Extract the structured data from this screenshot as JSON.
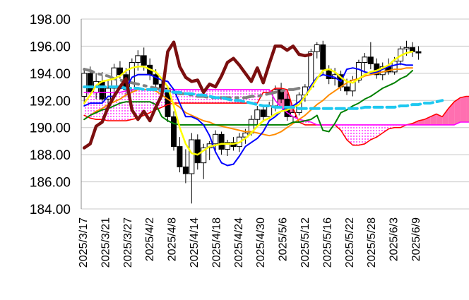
{
  "chart_data": {
    "type": "line",
    "title": "",
    "xlabel": "",
    "ylabel": "",
    "ylim": [
      184,
      198
    ],
    "y_ticks": [
      "198.00",
      "196.00",
      "194.00",
      "192.00",
      "190.00",
      "188.00",
      "186.00",
      "184.00"
    ],
    "x_ticks": [
      "2025/3/17",
      "2025/3/21",
      "2025/3/27",
      "2025/4/2",
      "2025/4/8",
      "2025/4/14",
      "2025/4/18",
      "2025/4/24",
      "2025/4/30",
      "2025/5/6",
      "2025/5/12",
      "2025/5/16",
      "2025/5/22",
      "2025/5/28",
      "2025/6/3",
      "2025/6/9"
    ],
    "grid": "horizontal",
    "colors": {
      "lagging": "#7b0f0f",
      "tenkan": "#0000ff",
      "kijun": "#008000",
      "ma_short": "#ffff00",
      "ma_mid": "#ff8c00",
      "long_dashed": "#808080",
      "cyan_dashed": "#1ec8f0",
      "span_a": "#ff00ff",
      "span_b": "#ff0000",
      "cloud_bull": "#ee82ee",
      "cloud_bear": "#ff6fb0"
    },
    "candles": [
      [
        192.3,
        194.4,
        191.7,
        194.0
      ],
      [
        194.0,
        194.5,
        192.3,
        192.6
      ],
      [
        192.6,
        194.0,
        192.1,
        193.4
      ],
      [
        193.4,
        194.1,
        191.9,
        192.1
      ],
      [
        192.1,
        193.5,
        191.6,
        192.9
      ],
      [
        192.9,
        194.7,
        192.5,
        194.4
      ],
      [
        194.4,
        194.9,
        193.6,
        193.9
      ],
      [
        193.9,
        194.4,
        192.3,
        192.8
      ],
      [
        192.8,
        195.1,
        192.6,
        194.8
      ],
      [
        194.8,
        195.7,
        194.2,
        195.3
      ],
      [
        195.3,
        195.9,
        194.2,
        194.6
      ],
      [
        194.6,
        195.1,
        193.5,
        193.9
      ],
      [
        193.9,
        194.3,
        192.8,
        193.2
      ],
      [
        193.2,
        193.6,
        192.4,
        192.9
      ],
      [
        192.9,
        193.1,
        190.4,
        190.8
      ],
      [
        190.8,
        191.2,
        188.3,
        188.6
      ],
      [
        188.6,
        189.3,
        186.7,
        187.1
      ],
      [
        187.1,
        188.4,
        185.9,
        186.6
      ],
      [
        186.6,
        189.6,
        184.4,
        189.1
      ],
      [
        189.1,
        189.5,
        186.9,
        187.4
      ],
      [
        187.4,
        188.8,
        186.2,
        188.5
      ],
      [
        188.5,
        189.0,
        187.6,
        188.8
      ],
      [
        188.8,
        189.8,
        188.3,
        189.5
      ],
      [
        189.5,
        189.7,
        188.0,
        188.4
      ],
      [
        188.4,
        189.1,
        187.9,
        188.9
      ],
      [
        188.9,
        189.3,
        188.3,
        188.6
      ],
      [
        188.6,
        189.6,
        188.2,
        189.3
      ],
      [
        189.3,
        189.9,
        188.8,
        189.6
      ],
      [
        189.6,
        190.9,
        189.4,
        190.6
      ],
      [
        190.6,
        191.6,
        190.1,
        191.3
      ],
      [
        191.3,
        191.7,
        190.4,
        190.8
      ],
      [
        190.8,
        191.9,
        190.6,
        191.6
      ],
      [
        191.6,
        193.1,
        191.2,
        192.8
      ],
      [
        192.8,
        193.3,
        191.8,
        192.1
      ],
      [
        192.1,
        192.5,
        190.5,
        190.8
      ],
      [
        190.8,
        191.4,
        190.3,
        191.1
      ],
      [
        191.1,
        192.6,
        190.9,
        192.4
      ],
      [
        192.4,
        193.2,
        191.9,
        193.0
      ],
      [
        193.0,
        195.8,
        192.8,
        195.6
      ],
      [
        195.6,
        196.3,
        195.1,
        196.1
      ],
      [
        196.1,
        196.4,
        193.9,
        194.3
      ],
      [
        194.3,
        194.6,
        193.2,
        193.6
      ],
      [
        193.6,
        194.4,
        193.1,
        193.9
      ],
      [
        193.9,
        194.2,
        192.7,
        193.0
      ],
      [
        193.0,
        193.6,
        192.4,
        192.7
      ],
      [
        192.7,
        193.8,
        192.3,
        193.5
      ],
      [
        193.5,
        195.0,
        193.3,
        194.8
      ],
      [
        194.8,
        195.5,
        194.1,
        195.2
      ],
      [
        195.2,
        196.3,
        194.3,
        194.7
      ],
      [
        194.7,
        195.1,
        193.6,
        193.9
      ],
      [
        193.9,
        194.8,
        193.5,
        194.5
      ],
      [
        194.5,
        195.1,
        193.9,
        194.1
      ],
      [
        194.1,
        195.2,
        193.9,
        194.9
      ],
      [
        194.9,
        196.0,
        194.6,
        195.8
      ],
      [
        195.8,
        196.4,
        195.3,
        195.9
      ],
      [
        195.9,
        196.3,
        195.2,
        195.6
      ],
      [
        195.6,
        196.0,
        195.0,
        195.5
      ]
    ],
    "series": [
      {
        "key": "lagging",
        "values": [
          188.5,
          188.8,
          190.1,
          190.4,
          191.5,
          192.3,
          193.0,
          193.6,
          191.3,
          190.6,
          191.2,
          190.5,
          191.5,
          192.4,
          195.6,
          196.3,
          194.5,
          193.7,
          193.4,
          193.5,
          192.6,
          193.2,
          193.0,
          193.8,
          194.8,
          195.1,
          194.6,
          194.0,
          193.4,
          194.4,
          193.3,
          194.7,
          196.0,
          196.0,
          195.7,
          196.0,
          195.4,
          195.3,
          195.4
        ]
      },
      {
        "key": "tenkan",
        "values": [
          191.6,
          191.8,
          191.8,
          191.8,
          192.3,
          192.3,
          192.9,
          192.9,
          193.7,
          193.9,
          193.9,
          193.9,
          193.7,
          193.5,
          193.4,
          192.8,
          191.8,
          190.8,
          190.8,
          190.6,
          190.2,
          189.4,
          188.2,
          187.4,
          187.2,
          187.3,
          187.9,
          188.6,
          188.9,
          189.2,
          189.7,
          190.5,
          190.8,
          191.2,
          191.5,
          191.6,
          191.9,
          192.3,
          193.1,
          193.7,
          193.9,
          193.8,
          193.7,
          193.4,
          194.3,
          194.4,
          194.3,
          194.1,
          194.0,
          194.1,
          194.3,
          194.5,
          194.6,
          194.7,
          194.6,
          194.6
        ]
      },
      {
        "key": "kijun",
        "values": [
          190.6,
          190.9,
          191.1,
          191.3,
          191.4,
          191.6,
          191.8,
          191.9,
          191.9,
          191.9,
          191.9,
          191.9,
          191.7,
          190.8,
          190.5,
          190.3,
          190.2,
          190.2,
          190.2,
          190.2,
          190.2,
          190.2,
          190.2,
          190.2,
          190.2,
          190.2,
          190.2,
          190.2,
          190.2,
          190.2,
          190.2,
          190.2,
          190.2,
          190.2,
          190.2,
          190.4,
          190.4,
          190.5,
          190.6,
          190.9,
          189.8,
          189.7,
          190.3,
          191.1,
          191.3,
          191.6,
          191.8,
          192.1,
          192.3,
          192.6,
          192.9,
          193.1,
          193.3,
          193.6,
          193.8,
          194.2
        ]
      },
      {
        "key": "ma_short",
        "values": [
          191.8,
          192.4,
          193.1,
          193.4,
          193.5,
          193.6,
          193.8,
          194.2,
          194.4,
          194.5,
          194.5,
          194.3,
          194.1,
          193.6,
          193.0,
          191.6,
          190.0,
          188.8,
          188.1,
          188.0,
          188.3,
          188.6,
          188.7,
          188.8,
          188.8,
          188.8,
          188.9,
          189.2,
          189.6,
          190.1,
          190.5,
          190.7,
          191.0,
          191.2,
          191.3,
          191.5,
          191.7,
          192.3,
          192.9,
          193.6,
          194.2,
          194.3,
          194.1,
          193.7,
          193.4,
          193.3,
          193.6,
          193.9,
          194.1,
          194.2,
          194.4,
          194.6,
          195.0,
          195.3,
          195.5,
          195.6
        ]
      },
      {
        "key": "ma_mid",
        "values": [
          190.6,
          190.9,
          191.2,
          191.4,
          191.7,
          191.9,
          192.1,
          192.4,
          192.6,
          192.8,
          192.8,
          192.8,
          192.7,
          192.4,
          192.1,
          191.8,
          191.5,
          191.1,
          190.9,
          190.7,
          190.5,
          190.4,
          190.2,
          190.1,
          190.0,
          189.9,
          189.8,
          189.7,
          189.7,
          189.6,
          189.5,
          189.4,
          189.5,
          189.7,
          190.0,
          190.3,
          190.6,
          190.9,
          191.3,
          191.7,
          192.0,
          192.4,
          192.7,
          193.0,
          193.3,
          193.5,
          193.6,
          193.8,
          193.9,
          194.0,
          194.1,
          194.2,
          194.3,
          194.3,
          194.4,
          194.4
        ]
      },
      {
        "key": "long_dashed",
        "values": [
          194.3,
          194.2,
          194.0,
          193.9,
          193.8,
          193.6,
          193.5,
          193.4,
          193.3,
          193.2,
          193.1,
          193.0,
          192.9,
          192.8,
          192.7,
          192.6,
          192.5,
          192.5,
          192.4,
          192.3,
          192.3,
          192.2,
          192.2,
          192.2,
          192.2,
          192.2,
          192.2,
          192.2,
          192.3,
          192.3,
          192.4,
          192.5,
          192.6,
          192.7,
          192.8,
          192.8,
          192.9
        ]
      },
      {
        "key": "cyan_dashed",
        "values": [
          193.0,
          193.0,
          193.0,
          193.0,
          193.0,
          193.0,
          193.0,
          192.9,
          192.9,
          192.9,
          192.8,
          192.8,
          192.8,
          192.7,
          192.7,
          192.6,
          192.6,
          192.5,
          192.5,
          192.4,
          192.4,
          192.3,
          192.2,
          192.2,
          192.1,
          192.0,
          192.0,
          191.9,
          191.8,
          191.7,
          191.6,
          191.6,
          191.5,
          191.5,
          191.5,
          191.5,
          191.4,
          191.4,
          191.4,
          191.4,
          191.4,
          191.4,
          191.4,
          191.4,
          191.4,
          191.4,
          191.4,
          191.5,
          191.5,
          191.5,
          191.5,
          191.5,
          191.5,
          191.6,
          191.6,
          191.7,
          191.7,
          191.8,
          191.8,
          191.9,
          192.0
        ]
      },
      {
        "key": "span_a",
        "values": [
          192.6,
          192.6,
          192.6,
          192.6,
          192.6,
          192.6,
          192.6,
          192.7,
          192.8,
          192.8,
          192.8,
          192.8,
          192.8,
          192.8,
          192.8,
          192.8,
          192.8,
          192.8,
          192.8,
          192.8,
          192.8,
          192.8,
          192.8,
          192.8,
          192.8,
          192.8,
          192.8,
          192.8,
          192.8,
          192.8,
          192.8,
          192.8,
          192.0,
          191.5,
          191.1,
          190.8,
          190.6,
          190.5,
          190.4,
          190.2,
          190.2,
          190.2,
          190.2,
          190.2,
          190.2,
          190.2,
          190.2,
          190.2,
          190.2,
          190.2,
          190.2,
          190.2,
          190.2,
          190.2,
          190.2,
          190.2,
          190.2,
          190.2,
          190.2,
          190.2,
          190.2,
          190.2,
          190.2,
          190.4,
          190.4,
          190.4
        ]
      },
      {
        "key": "span_b",
        "values": [
          190.9,
          190.7,
          190.6,
          190.6,
          190.5,
          190.5,
          190.5,
          190.5,
          190.6,
          190.7,
          190.9,
          191.1,
          191.3,
          191.5,
          191.7,
          191.8,
          191.8,
          191.8,
          191.8,
          191.8,
          191.8,
          191.8,
          191.8,
          191.8,
          191.8,
          191.8,
          191.8,
          191.8,
          191.8,
          191.8,
          192.6,
          192.6,
          192.9,
          192.9,
          192.8,
          191.4,
          190.4,
          190.2,
          190.2,
          190.2,
          190.2,
          190.2,
          190.2,
          189.8,
          189.1,
          188.7,
          188.7,
          188.8,
          189.1,
          189.3,
          189.6,
          189.9,
          190.0,
          190.0,
          190.2,
          190.3,
          190.5,
          190.6,
          190.8,
          191.0,
          190.8,
          191.4,
          191.9,
          192.2,
          192.3,
          192.3
        ]
      }
    ]
  }
}
